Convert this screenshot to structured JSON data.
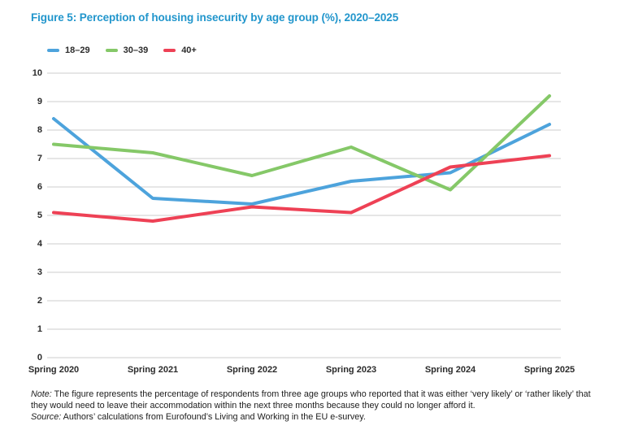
{
  "title": "Figure 5: Perception of housing insecurity by age group (%), 2020–2025",
  "colors": {
    "title": "#2296CC",
    "grid": "#D8D8D8",
    "axis_text": "#2B2B2B"
  },
  "chart_data": {
    "type": "line",
    "title": "Figure 5: Perception of housing insecurity by age group (%), 2020–2025",
    "categories": [
      "Spring 2020",
      "Spring 2021",
      "Spring 2022",
      "Spring 2023",
      "Spring 2024",
      "Spring 2025"
    ],
    "series": [
      {
        "name": "18–29",
        "color": "#4DA3DC",
        "values": [
          8.4,
          5.6,
          5.4,
          6.2,
          6.5,
          8.2
        ]
      },
      {
        "name": "30–39",
        "color": "#85C868",
        "values": [
          7.5,
          7.2,
          6.4,
          7.4,
          5.9,
          9.2
        ]
      },
      {
        "name": "40+",
        "color": "#EE4155",
        "values": [
          5.1,
          4.8,
          5.3,
          5.1,
          6.7,
          7.1
        ]
      }
    ],
    "xlabel": "",
    "ylabel": "",
    "ylim": [
      0,
      10
    ],
    "yticks": [
      0,
      1,
      2,
      3,
      4,
      5,
      6,
      7,
      8,
      9,
      10
    ],
    "grid": true,
    "legend_position": "top-left"
  },
  "note": {
    "label": "Note:",
    "text": "The figure represents the percentage of respondents from three age groups who reported that it was either ‘very likely’ or ‘rather likely’ that they would need to leave their accommodation within the next three months because they could no longer afford it."
  },
  "source": {
    "label": "Source:",
    "text": "Authors’ calculations from Eurofound’s Living and Working in the EU e-survey."
  }
}
